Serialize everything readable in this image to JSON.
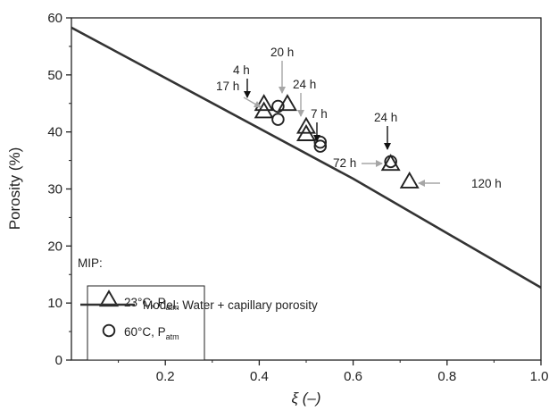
{
  "chart_data": {
    "type": "scatter",
    "xlabel": "ξ (–)",
    "ylabel": "Porosity (%)",
    "xlim": [
      0.0,
      1.0
    ],
    "ylim": [
      0,
      60
    ],
    "x_ticks": [
      "0.2",
      "0.4",
      "0.6",
      "0.8",
      "1.0"
    ],
    "y_ticks": [
      "0",
      "10",
      "20",
      "30",
      "40",
      "50",
      "60"
    ],
    "legend_title": "MIP:",
    "series": [
      {
        "name": "23°C, P",
        "subscript": "atm",
        "marker": "triangle",
        "points": [
          [
            0.41,
            43.5
          ],
          [
            0.41,
            44.8
          ],
          [
            0.46,
            44.8
          ],
          [
            0.5,
            39.5
          ],
          [
            0.5,
            40.8
          ],
          [
            0.68,
            34.3
          ],
          [
            0.72,
            31.2
          ]
        ]
      },
      {
        "name": "60°C, P",
        "subscript": "atm",
        "marker": "circle",
        "points": [
          [
            0.44,
            44.5
          ],
          [
            0.44,
            42.2
          ],
          [
            0.53,
            37.5
          ],
          [
            0.53,
            38.2
          ],
          [
            0.68,
            34.8
          ]
        ]
      },
      {
        "name": "Model: Water + capillary porosity",
        "marker": "line",
        "points": [
          [
            0.0,
            58.3
          ],
          [
            0.6,
            31.8
          ],
          [
            1.0,
            12.7
          ]
        ]
      }
    ],
    "annotations": [
      {
        "label": "17 h",
        "arrow": "gray"
      },
      {
        "label": "4 h",
        "arrow": "black"
      },
      {
        "label": "20 h",
        "arrow": "gray"
      },
      {
        "label": "24 h",
        "arrow": "gray"
      },
      {
        "label": "7 h",
        "arrow": "black"
      },
      {
        "label": "24 h",
        "arrow": "black"
      },
      {
        "label": "72 h",
        "arrow": "gray"
      },
      {
        "label": "120 h",
        "arrow": "gray"
      }
    ],
    "colors": {
      "line": "#333333",
      "marker": "#222222",
      "gray_arrow": "#a6a6a6",
      "black_arrow": "#111111"
    }
  }
}
